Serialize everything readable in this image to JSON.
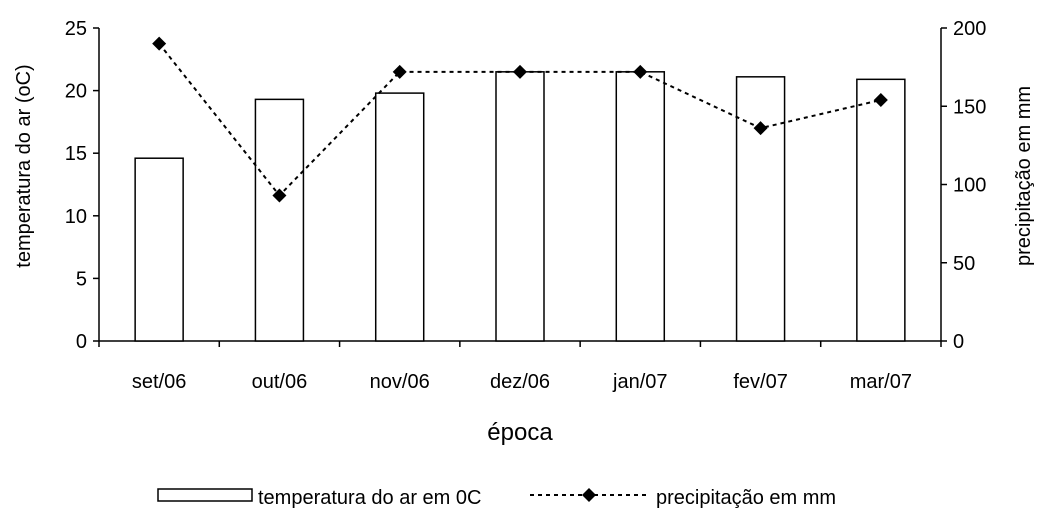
{
  "chart_data": {
    "type": "bar",
    "categories": [
      "set/06",
      "out/06",
      "nov/06",
      "dez/06",
      "jan/07",
      "fev/07",
      "mar/07"
    ],
    "series": [
      {
        "name": "temperatura do ar em 0C",
        "type": "bar",
        "axis": "left",
        "values": [
          14.6,
          19.3,
          19.8,
          21.5,
          21.5,
          21.1,
          20.9
        ]
      },
      {
        "name": "precipitação em mm",
        "type": "line",
        "style": "dotted",
        "marker": "diamond",
        "axis": "right",
        "values": [
          190,
          93,
          172,
          172,
          172,
          136,
          154
        ]
      }
    ],
    "xlabel": "época",
    "ylabel": "temperatura do ar (oC)",
    "ylabel_right": "precipitação em mm",
    "ylim": [
      0,
      25
    ],
    "yticks": [
      0,
      5,
      10,
      15,
      20,
      25
    ],
    "ylim_right": [
      0,
      200
    ],
    "yticks_right": [
      0,
      50,
      100,
      150,
      200
    ],
    "grid": false,
    "legend_position": "bottom"
  },
  "colors": {
    "bar_fill": "#ffffff",
    "bar_stroke": "#000000",
    "line": "#000000",
    "axis": "#000000"
  }
}
